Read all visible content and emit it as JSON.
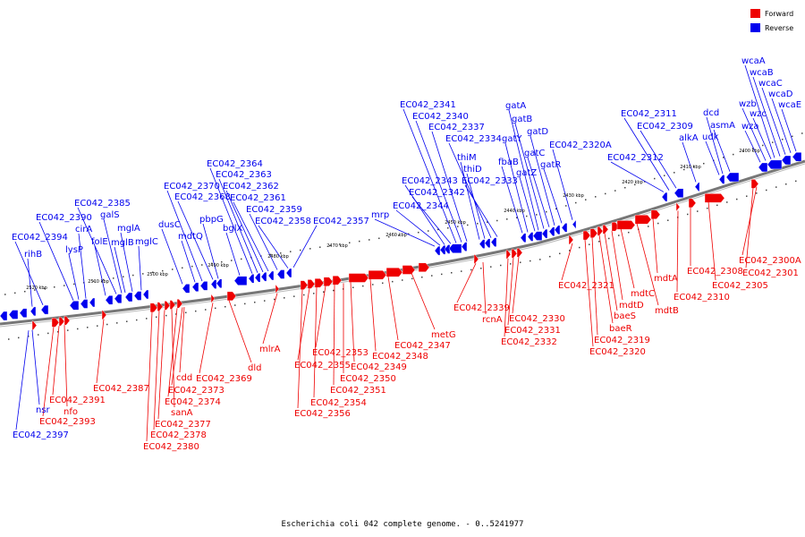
{
  "colors": {
    "forward": "#ee0000",
    "reverse": "#0000ee",
    "backbone": "#777777"
  },
  "legend": {
    "forward_label": "Forward",
    "reverse_label": "Reverse"
  },
  "caption": "Escherichia coli 042 complete genome. - 0..5241977",
  "scale_labels": [
    "2520 kbp",
    "2510 kbp",
    "2500 kbp",
    "2490 kbp",
    "2480 kbp",
    "2470 kbp",
    "2460 kbp",
    "2450 kbp",
    "2440 kbp",
    "2430 kbp",
    "2420 kbp",
    "2410 kbp",
    "2400 kbp"
  ],
  "reverse_genes": [
    "rihB",
    "EC042_2394",
    "EC042_2390",
    "lysP",
    "cirA",
    "EC042_2385",
    "folE",
    "galS",
    "mglB",
    "mglA",
    "mglC",
    "dusC",
    "mdtQ",
    "EC042_2370",
    "EC042_2368",
    "pbpG",
    "bglX",
    "EC042_2364",
    "EC042_2363",
    "EC042_2362",
    "EC042_2361",
    "EC042_2359",
    "EC042_2358",
    "EC042_2357",
    "mrp",
    "EC042_2344",
    "EC042_2343",
    "EC042_2342",
    "EC042_2341",
    "EC042_2340",
    "EC042_2337",
    "thiM",
    "thiD",
    "EC042_2334",
    "EC042_2333",
    "fbaB",
    "gatY",
    "gatZ",
    "gatA",
    "gatB",
    "gatC",
    "gatD",
    "gatR",
    "EC042_2320A",
    "EC042_2312",
    "EC042_2311",
    "EC042_2309",
    "alkA",
    "udk",
    "dcd",
    "asmA",
    "wza",
    "wzb",
    "wzc",
    "wcaA",
    "wcaB",
    "wcaC",
    "wcaD",
    "wcaE",
    "nsr",
    "EC042_2397"
  ],
  "forward_genes": [
    "EC042_2393",
    "EC042_2391",
    "nfo",
    "EC042_2387",
    "EC042_2380",
    "EC042_2378",
    "EC042_2377",
    "sanA",
    "EC042_2374",
    "EC042_2373",
    "cdd",
    "EC042_2369",
    "dld",
    "mlrA",
    "EC042_2356",
    "EC042_2355",
    "EC042_2354",
    "EC042_2353",
    "EC042_2351",
    "EC042_2350",
    "EC042_2349",
    "EC042_2348",
    "EC042_2347",
    "metG",
    "EC042_2339",
    "rcnA",
    "EC042_2332",
    "EC042_2331",
    "EC042_2330",
    "EC042_2321",
    "EC042_2320",
    "EC042_2319",
    "baeR",
    "baeS",
    "mdtD",
    "mdtC",
    "mdtB",
    "mdtA",
    "EC042_2310",
    "EC042_2308",
    "EC042_2305",
    "EC042_2301",
    "EC042_2300A"
  ]
}
